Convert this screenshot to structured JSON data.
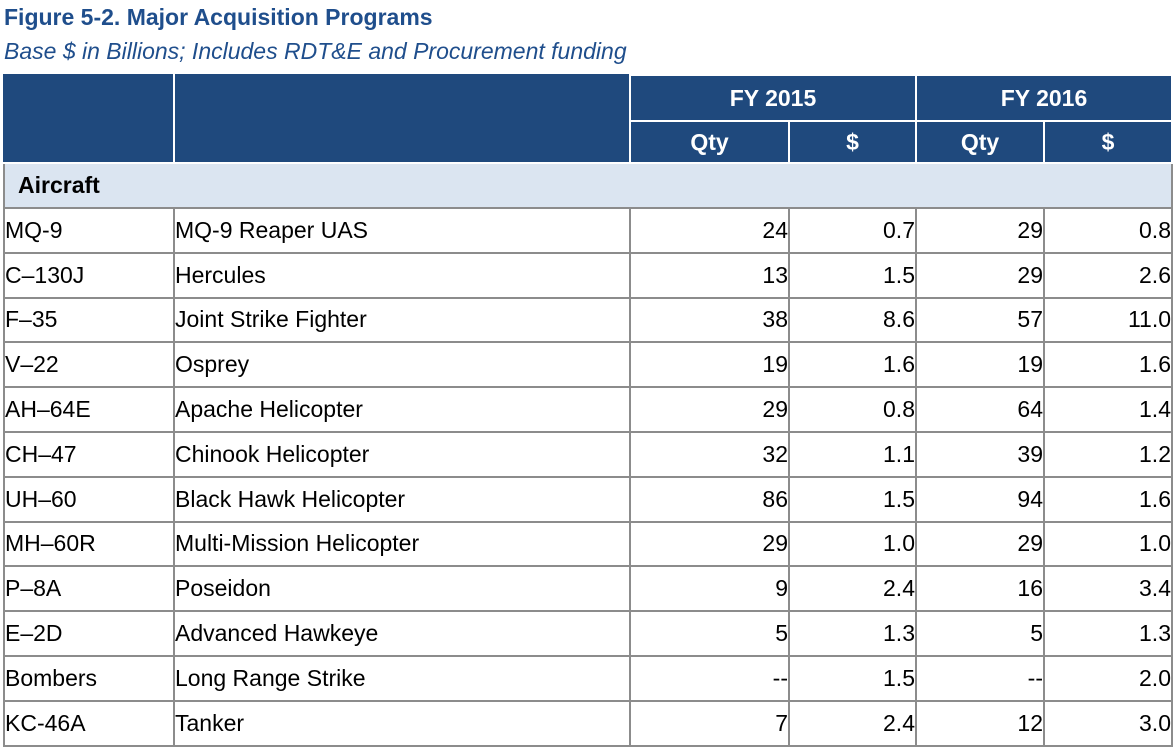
{
  "figure": {
    "title": "Figure 5-2.  Major Acquisition Programs",
    "subtitle": "Base $ in Billions; Includes RDT&E and Procurement funding"
  },
  "table": {
    "year_headers": [
      "FY 2015",
      "FY 2016"
    ],
    "sub_headers": [
      "Qty",
      "$",
      "Qty",
      "$"
    ],
    "section": "Aircraft",
    "rows": [
      {
        "code": "MQ-9",
        "name": "MQ-9 Reaper UAS",
        "fy2015_qty": "24",
        "fy2015_amount": "0.7",
        "fy2016_qty": "29",
        "fy2016_amount": "0.8"
      },
      {
        "code": "C–130J",
        "name": "Hercules",
        "fy2015_qty": "13",
        "fy2015_amount": "1.5",
        "fy2016_qty": "29",
        "fy2016_amount": "2.6"
      },
      {
        "code": "F–35",
        "name": "Joint Strike Fighter",
        "fy2015_qty": "38",
        "fy2015_amount": "8.6",
        "fy2016_qty": "57",
        "fy2016_amount": "11.0"
      },
      {
        "code": "V–22",
        "name": "Osprey",
        "fy2015_qty": "19",
        "fy2015_amount": "1.6",
        "fy2016_qty": "19",
        "fy2016_amount": "1.6"
      },
      {
        "code": "AH–64E",
        "name": "Apache Helicopter",
        "fy2015_qty": "29",
        "fy2015_amount": "0.8",
        "fy2016_qty": "64",
        "fy2016_amount": "1.4"
      },
      {
        "code": "CH–47",
        "name": "Chinook Helicopter",
        "fy2015_qty": "32",
        "fy2015_amount": "1.1",
        "fy2016_qty": "39",
        "fy2016_amount": "1.2"
      },
      {
        "code": "UH–60",
        "name": "Black Hawk Helicopter",
        "fy2015_qty": "86",
        "fy2015_amount": "1.5",
        "fy2016_qty": "94",
        "fy2016_amount": "1.6"
      },
      {
        "code": "MH–60R",
        "name": "Multi-Mission Helicopter",
        "fy2015_qty": "29",
        "fy2015_amount": "1.0",
        "fy2016_qty": "29",
        "fy2016_amount": "1.0"
      },
      {
        "code": "P–8A",
        "name": "Poseidon",
        "fy2015_qty": "9",
        "fy2015_amount": "2.4",
        "fy2016_qty": "16",
        "fy2016_amount": "3.4"
      },
      {
        "code": "E–2D",
        "name": "Advanced Hawkeye",
        "fy2015_qty": "5",
        "fy2015_amount": "1.3",
        "fy2016_qty": "5",
        "fy2016_amount": "1.3"
      },
      {
        "code": "Bombers",
        "name": "Long Range Strike",
        "fy2015_qty": "--",
        "fy2015_amount": "1.5",
        "fy2016_qty": "--",
        "fy2016_amount": "2.0"
      },
      {
        "code": "KC-46A",
        "name": "Tanker",
        "fy2015_qty": "7",
        "fy2015_amount": "2.4",
        "fy2016_qty": "12",
        "fy2016_amount": "3.0"
      }
    ]
  },
  "colors": {
    "title_text": "#1f4e8c",
    "header_background": "#1f497d",
    "header_text": "#ffffff",
    "section_background": "#dbe5f1",
    "grid_lines": "#8c8c8c"
  }
}
